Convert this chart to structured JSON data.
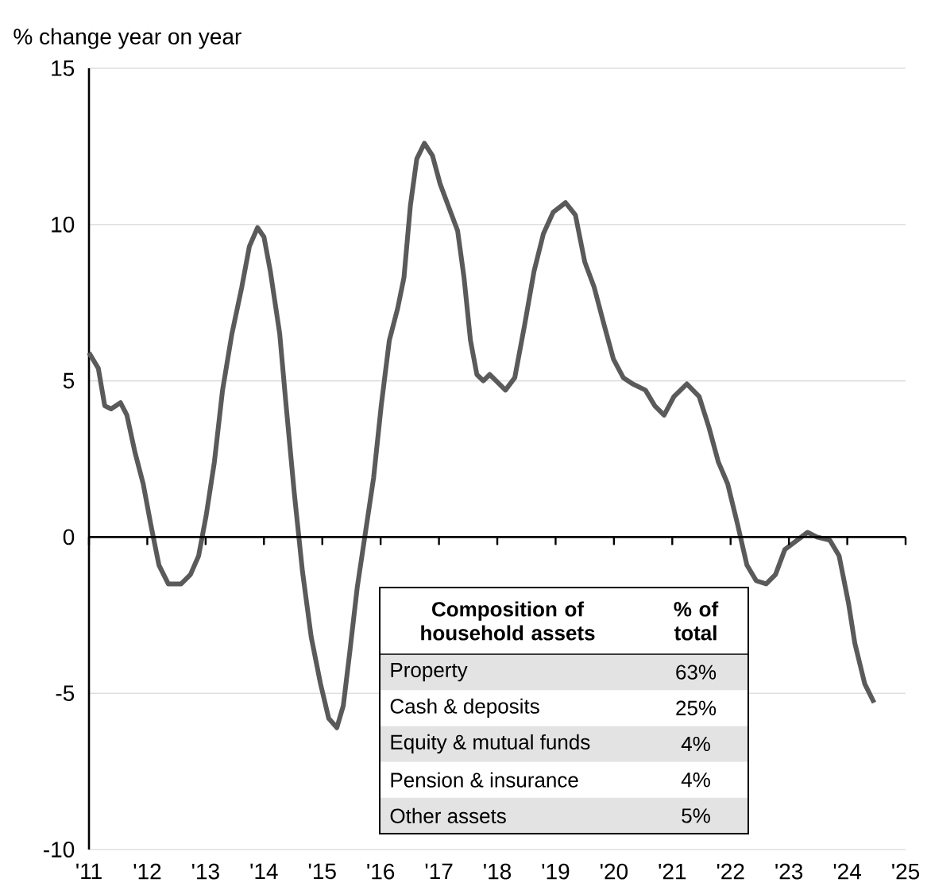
{
  "chart_data": {
    "type": "line",
    "ylabel": "% change year on year",
    "x": [
      2011.0,
      2011.16,
      2011.27,
      2011.38,
      2011.54,
      2011.65,
      2011.79,
      2011.93,
      2012.06,
      2012.2,
      2012.36,
      2012.58,
      2012.74,
      2012.88,
      2013.01,
      2013.15,
      2013.29,
      2013.45,
      2013.62,
      2013.75,
      2013.89,
      2014.0,
      2014.11,
      2014.27,
      2014.38,
      2014.52,
      2014.66,
      2014.81,
      2014.97,
      2015.11,
      2015.25,
      2015.36,
      2015.47,
      2015.6,
      2015.74,
      2015.88,
      2016.01,
      2016.15,
      2016.29,
      2016.4,
      2016.51,
      2016.62,
      2016.75,
      2016.89,
      2017.02,
      2017.16,
      2017.32,
      2017.43,
      2017.54,
      2017.65,
      2017.76,
      2017.87,
      2017.98,
      2018.14,
      2018.3,
      2018.47,
      2018.63,
      2018.79,
      2018.96,
      2019.17,
      2019.34,
      2019.5,
      2019.66,
      2019.83,
      2019.99,
      2020.16,
      2020.32,
      2020.54,
      2020.7,
      2020.86,
      2021.03,
      2021.25,
      2021.46,
      2021.63,
      2021.79,
      2021.95,
      2022.12,
      2022.28,
      2022.44,
      2022.61,
      2022.77,
      2022.93,
      2023.32,
      2023.48,
      2023.7,
      2023.86,
      2024.02,
      2024.13,
      2024.3,
      2024.46
    ],
    "series": [
      {
        "color": "#5a5a5a",
        "values": [
          5.9,
          5.4,
          4.2,
          4.1,
          4.3,
          3.9,
          2.7,
          1.7,
          0.4,
          -0.9,
          -1.5,
          -1.5,
          -1.2,
          -0.6,
          0.7,
          2.4,
          4.7,
          6.5,
          8.0,
          9.3,
          9.9,
          9.6,
          8.5,
          6.5,
          4.2,
          1.4,
          -1.1,
          -3.2,
          -4.7,
          -5.8,
          -6.1,
          -5.4,
          -3.7,
          -1.6,
          0.15,
          1.9,
          4.2,
          6.3,
          7.3,
          8.3,
          10.6,
          12.1,
          12.6,
          12.2,
          11.3,
          10.6,
          9.8,
          8.3,
          6.3,
          5.2,
          5.0,
          5.2,
          5.0,
          4.7,
          5.1,
          6.8,
          8.5,
          9.7,
          10.4,
          10.7,
          10.3,
          8.8,
          8.0,
          6.8,
          5.7,
          5.1,
          4.9,
          4.7,
          4.2,
          3.9,
          4.5,
          4.9,
          4.5,
          3.5,
          2.4,
          1.7,
          0.4,
          -0.9,
          -1.4,
          -1.5,
          -1.2,
          -0.4,
          0.15,
          0,
          -0.1,
          -0.6,
          -2.1,
          -3.4,
          -4.7,
          -5.3
        ]
      }
    ],
    "xlim": [
      2011,
      2025
    ],
    "ylim": [
      -10,
      15
    ],
    "xticks": [
      {
        "value": 2011,
        "label": "'11"
      },
      {
        "value": 2012,
        "label": "'12"
      },
      {
        "value": 2013,
        "label": "'13"
      },
      {
        "value": 2014,
        "label": "'14"
      },
      {
        "value": 2015,
        "label": "'15"
      },
      {
        "value": 2016,
        "label": "'16"
      },
      {
        "value": 2017,
        "label": "'17"
      },
      {
        "value": 2018,
        "label": "'18"
      },
      {
        "value": 2019,
        "label": "'19"
      },
      {
        "value": 2020,
        "label": "'20"
      },
      {
        "value": 2021,
        "label": "'21"
      },
      {
        "value": 2022,
        "label": "'22"
      },
      {
        "value": 2023,
        "label": "'23"
      },
      {
        "value": 2024,
        "label": "'24"
      },
      {
        "value": 2025,
        "label": "'25"
      }
    ],
    "yticks": [
      -10,
      -5,
      0,
      5,
      10,
      15
    ],
    "grid": "y",
    "line_style": "solid",
    "annotations": [
      "Composition of household assets",
      "% of total",
      "Property",
      "63%",
      "Cash & deposits",
      "25%",
      "Equity & mutual funds",
      "4%",
      "Pension & insurance",
      "4%",
      "Other assets",
      "5%"
    ]
  }
}
